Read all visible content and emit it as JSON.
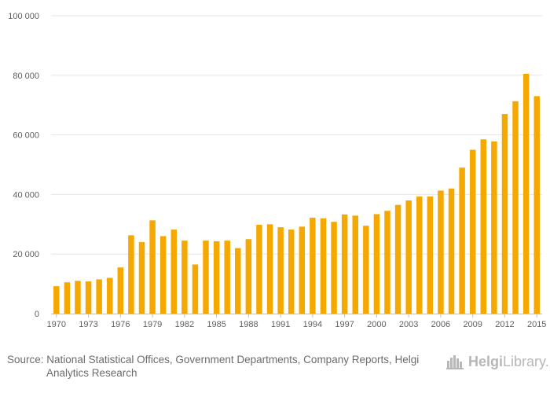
{
  "chart_data": {
    "type": "bar",
    "title": "",
    "xlabel": "",
    "ylabel": "",
    "ylim": [
      0,
      100000
    ],
    "yticks": [
      0,
      20000,
      40000,
      60000,
      80000,
      100000
    ],
    "ytick_labels": [
      "0",
      "20 000",
      "40 000",
      "60 000",
      "80 000",
      "100 000"
    ],
    "xtick_labels": [
      "1970",
      "1973",
      "1976",
      "1979",
      "1982",
      "1985",
      "1988",
      "1991",
      "1994",
      "1997",
      "2000",
      "2003",
      "2006",
      "2009",
      "2012",
      "2015"
    ],
    "bar_color": "#f5a800",
    "categories": [
      "1970",
      "1971",
      "1972",
      "1973",
      "1974",
      "1975",
      "1976",
      "1977",
      "1978",
      "1979",
      "1980",
      "1981",
      "1982",
      "1983",
      "1984",
      "1985",
      "1986",
      "1987",
      "1988",
      "1989",
      "1990",
      "1991",
      "1992",
      "1993",
      "1994",
      "1995",
      "1996",
      "1997",
      "1998",
      "1999",
      "2000",
      "2001",
      "2002",
      "2003",
      "2004",
      "2005",
      "2006",
      "2007",
      "2008",
      "2009",
      "2010",
      "2011",
      "2012",
      "2013",
      "2014",
      "2015"
    ],
    "values": [
      9200,
      10500,
      11000,
      10800,
      11500,
      12000,
      15500,
      26300,
      24000,
      31300,
      26000,
      28200,
      24500,
      16500,
      24500,
      24300,
      24500,
      22000,
      25000,
      29800,
      30000,
      29000,
      28200,
      29200,
      32200,
      32000,
      30800,
      33300,
      32900,
      29500,
      33400,
      34500,
      36500,
      38000,
      39300,
      39300,
      41300,
      42000,
      49000,
      55000,
      58500,
      57800,
      67000,
      71300,
      80500,
      73000
    ]
  },
  "footer": {
    "source_label": "Source:",
    "source_text": "National Statistical Offices, Government Departments, Company Reports, Helgi Analytics Research"
  },
  "logo": {
    "brand_bold": "Helgi",
    "brand_light": "Library."
  },
  "colors": {
    "bar": "#f5a800",
    "grid": "#e6e6e6",
    "text": "#606060"
  }
}
